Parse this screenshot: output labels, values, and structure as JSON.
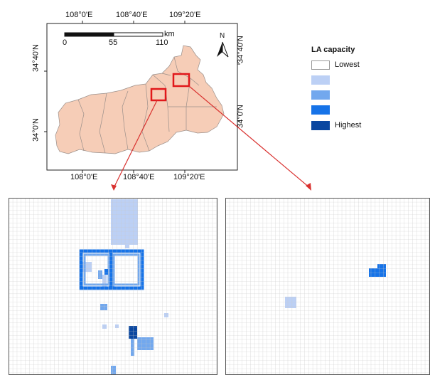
{
  "main_map": {
    "top_ticks": [
      "108°0'E",
      "108°40'E",
      "109°20'E"
    ],
    "bottom_ticks": [
      "108°0'E",
      "108°40'E",
      "109°20'E"
    ],
    "left_ticks": [
      "34°40'N",
      "34°0'N"
    ],
    "right_ticks": [
      "34°40'N",
      "34°0'N"
    ],
    "scale_bar": {
      "unit": "km",
      "labels": [
        "0",
        "55",
        "110"
      ]
    },
    "north_arrow": "N",
    "region_fill": "#f6cdb7",
    "highlight_color": "#e1181b"
  },
  "legend": {
    "title": "LA capacity",
    "items": [
      {
        "label": "Lowest",
        "color": "#ffffff"
      },
      {
        "label": "",
        "color": "#bcd0f5"
      },
      {
        "label": "",
        "color": "#72a8ee"
      },
      {
        "label": "",
        "color": "#1673e8"
      },
      {
        "label": "Highest",
        "color": "#0a47a0"
      }
    ]
  },
  "inset_left": {
    "grid_color": "#c8c8c8",
    "cells_note": ""
  },
  "inset_right": {
    "grid_color": "#c8c8c8"
  }
}
